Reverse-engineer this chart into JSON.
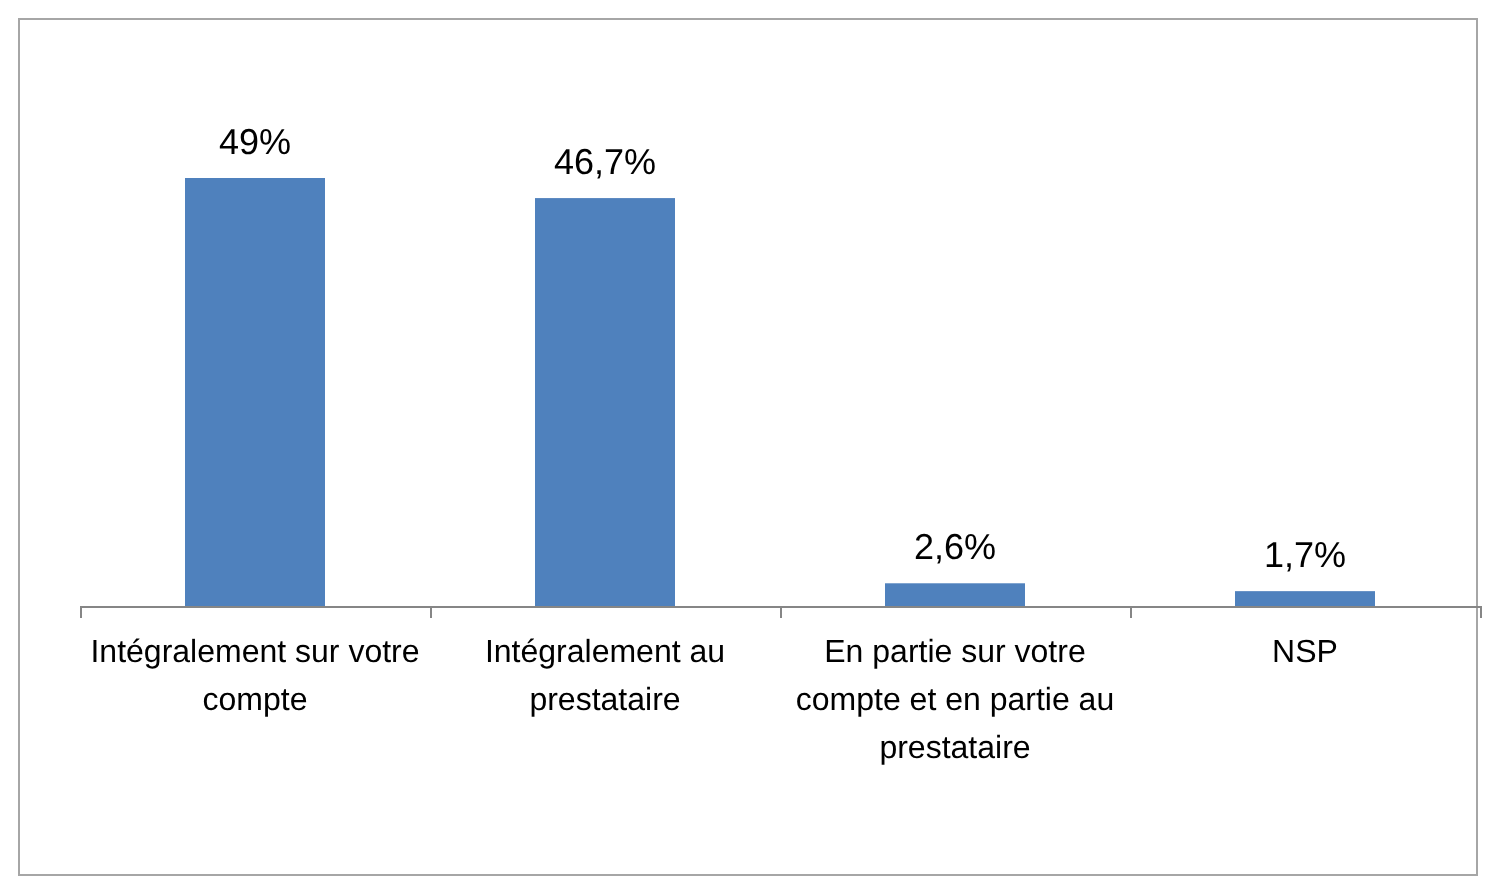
{
  "chart_data": {
    "type": "bar",
    "categories": [
      "Intégralement sur votre compte",
      "Intégralement au prestataire",
      "En partie sur votre compte et en partie au prestataire",
      "NSP"
    ],
    "values": [
      49,
      46.7,
      2.6,
      1.7
    ],
    "color": "#4f81bd",
    "value_labels": [
      "49%",
      "46,7%",
      "2,6%",
      "1,7%"
    ]
  }
}
